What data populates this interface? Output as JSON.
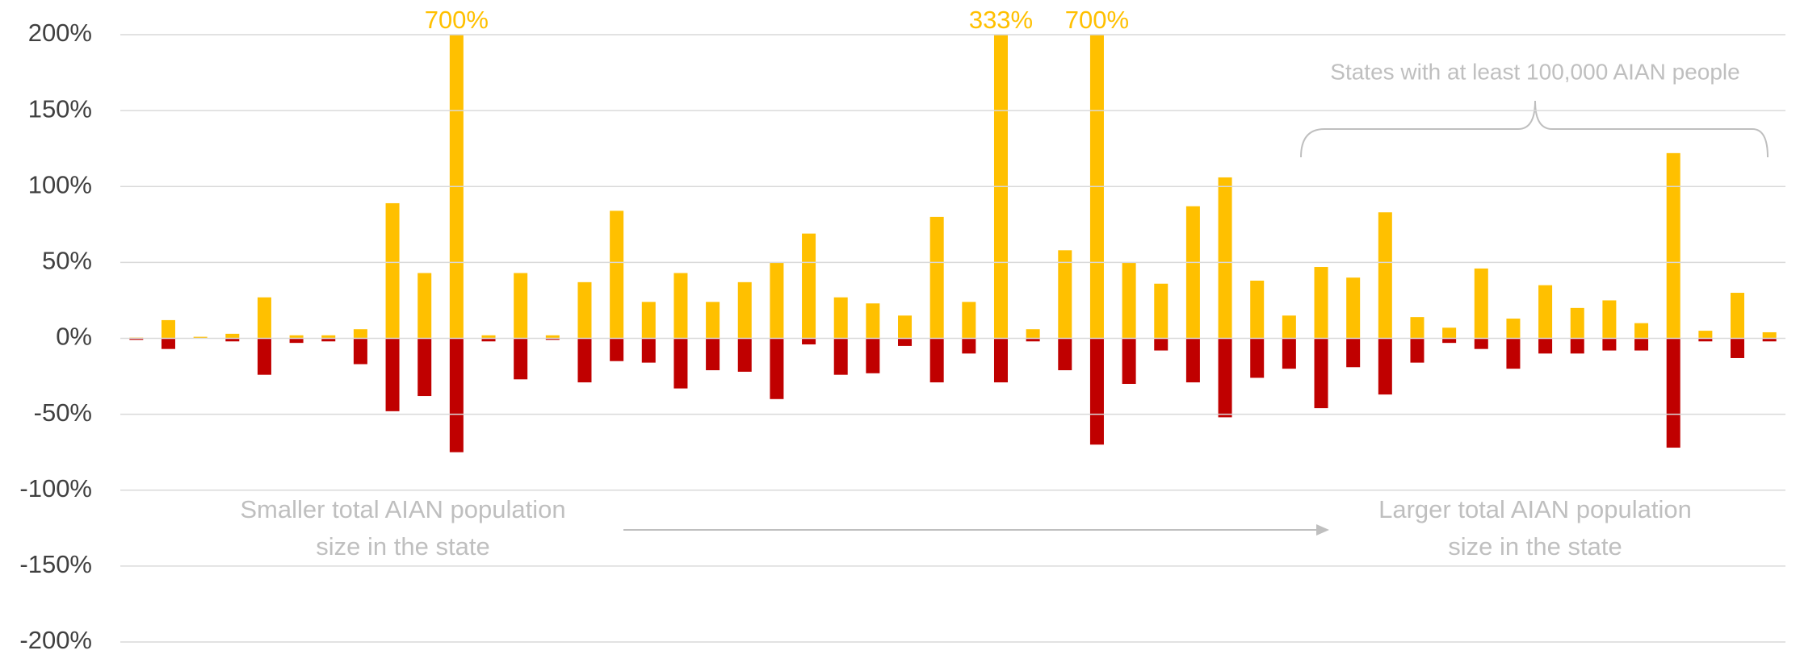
{
  "chart_data": {
    "type": "bar",
    "categories": [
      null,
      null,
      null,
      null,
      null,
      null,
      null,
      null,
      null,
      null,
      null,
      null,
      null,
      null,
      null,
      null,
      null,
      null,
      null,
      null,
      null,
      null,
      null,
      null,
      null,
      null,
      null,
      null,
      null,
      null,
      null,
      null,
      null,
      null,
      null,
      null,
      null,
      null,
      null,
      null,
      null,
      null,
      null,
      null,
      null,
      null,
      null,
      null,
      null,
      null,
      null,
      null
    ],
    "series": [
      {
        "color": "#ffc000",
        "values": [
          0.5,
          12,
          1,
          3,
          27,
          2,
          2,
          6,
          89,
          43,
          700,
          2,
          43,
          2,
          37,
          84,
          24,
          43,
          24,
          37,
          50,
          69,
          27,
          23,
          15,
          80,
          24,
          333,
          6,
          58,
          700,
          50,
          36,
          87,
          106,
          38,
          15,
          47,
          40,
          83,
          14,
          7,
          46,
          13,
          35,
          20,
          25,
          10,
          122,
          5,
          30,
          4
        ],
        "value_labels": [
          null,
          null,
          null,
          null,
          null,
          null,
          null,
          null,
          null,
          null,
          "700%",
          null,
          null,
          null,
          null,
          null,
          null,
          null,
          null,
          null,
          null,
          null,
          null,
          null,
          null,
          null,
          null,
          "333%",
          null,
          null,
          "700%",
          null,
          null,
          null,
          null,
          null,
          null,
          null,
          null,
          null,
          null,
          null,
          null,
          null,
          null,
          null,
          null,
          null,
          null,
          null,
          null,
          null
        ]
      },
      {
        "color": "#c00000",
        "values": [
          -1,
          -7,
          0,
          -2,
          -24,
          -3,
          -2,
          -17,
          -48,
          -38,
          -75,
          -2,
          -27,
          -1,
          -29,
          -15,
          -16,
          -33,
          -21,
          -22,
          -40,
          -4,
          -24,
          -23,
          -5,
          -29,
          -10,
          -29,
          -2,
          -21,
          -70,
          -30,
          -8,
          -29,
          -52,
          -26,
          -20,
          -46,
          -19,
          -37,
          -16,
          -3,
          -7,
          -20,
          -10,
          -10,
          -8,
          -8,
          -72,
          -2,
          -13,
          -2
        ]
      }
    ],
    "ylim": [
      -200,
      200
    ],
    "yticks": [
      {
        "value": -200,
        "label": "-200%"
      },
      {
        "value": -150,
        "label": "-150%"
      },
      {
        "value": -100,
        "label": "-100%"
      },
      {
        "value": -50,
        "label": "-50%"
      },
      {
        "value": 0,
        "label": "0%"
      },
      {
        "value": 50,
        "label": "50%"
      },
      {
        "value": 100,
        "label": "100%"
      },
      {
        "value": 150,
        "label": "150%"
      },
      {
        "value": 200,
        "label": "200%"
      }
    ],
    "grid": true,
    "annotations": [
      {
        "lines": [
          "Smaller total AIAN population",
          "size in the state"
        ]
      },
      {
        "lines": [
          "Larger total AIAN population",
          "size in the state"
        ]
      },
      {
        "lines": [
          "States with at least 100,000 AIAN people"
        ]
      }
    ]
  }
}
